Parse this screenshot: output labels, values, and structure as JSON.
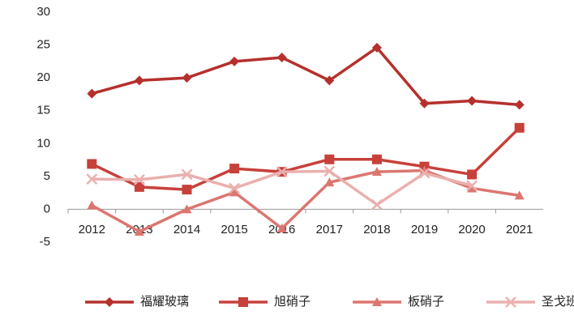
{
  "chart_data": {
    "type": "line",
    "categories": [
      "2012",
      "2013",
      "2014",
      "2015",
      "2016",
      "2017",
      "2018",
      "2019",
      "2020",
      "2021"
    ],
    "series": [
      {
        "name": "福耀玻璃",
        "color": "#b5302c",
        "marker": "diamond",
        "values": [
          17.6,
          19.6,
          20.0,
          22.5,
          23.1,
          19.6,
          24.6,
          16.1,
          16.5,
          15.9
        ]
      },
      {
        "name": "旭硝子",
        "color": "#c8403a",
        "marker": "square",
        "values": [
          6.9,
          3.4,
          3.0,
          6.2,
          5.7,
          7.6,
          7.6,
          6.5,
          5.3,
          12.4
        ]
      },
      {
        "name": "板硝子",
        "color": "#dc7670",
        "marker": "triangle",
        "values": [
          0.6,
          -3.4,
          0.0,
          2.6,
          -2.9,
          4.1,
          5.7,
          5.9,
          3.2,
          2.1
        ]
      },
      {
        "name": "圣戈班",
        "color": "#eab0ae",
        "marker": "x",
        "values": [
          4.6,
          4.5,
          5.3,
          3.2,
          5.7,
          5.8,
          0.7,
          5.5,
          3.6,
          null
        ]
      }
    ],
    "ylim": [
      -5,
      30
    ],
    "yticks": [
      -5,
      0,
      5,
      10,
      15,
      20,
      25,
      30
    ],
    "legend": "bottom"
  }
}
